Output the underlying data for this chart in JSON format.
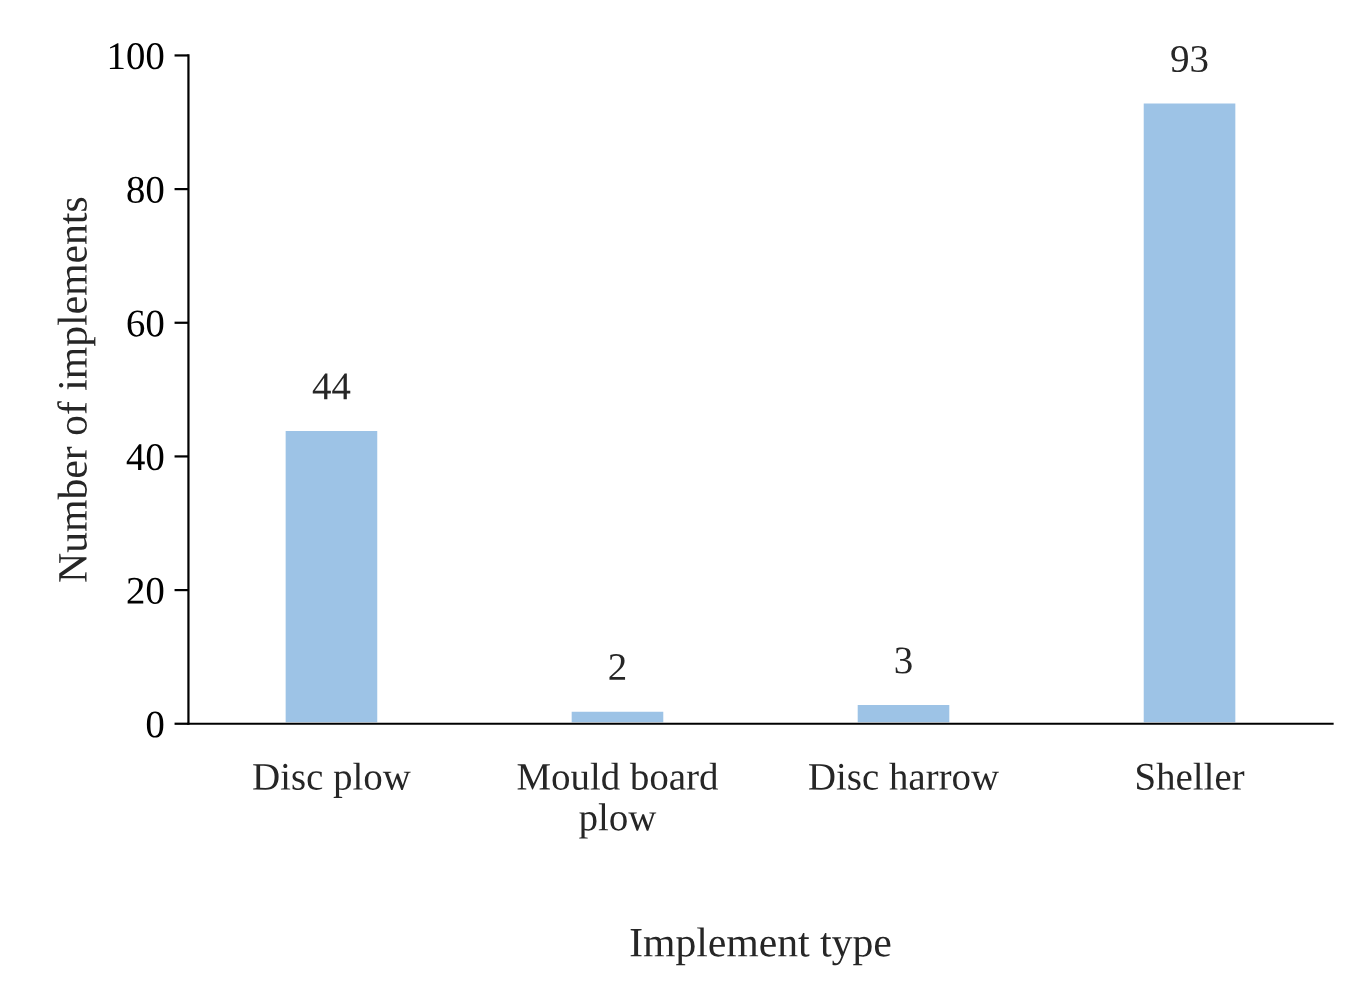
{
  "chart_data": {
    "type": "bar",
    "xlabel": "Implement type",
    "ylabel": "Number of implements",
    "categories": [
      "Disc plow",
      "Mould board\nplow",
      "Disc harrow",
      "Sheller"
    ],
    "values": [
      44,
      2,
      3,
      93
    ],
    "color": "#9dc3e6",
    "data_labels": true,
    "ylim": [
      0,
      100
    ],
    "yticks": [
      0,
      20,
      40,
      60,
      80,
      100
    ],
    "grid": false,
    "legend": false
  }
}
